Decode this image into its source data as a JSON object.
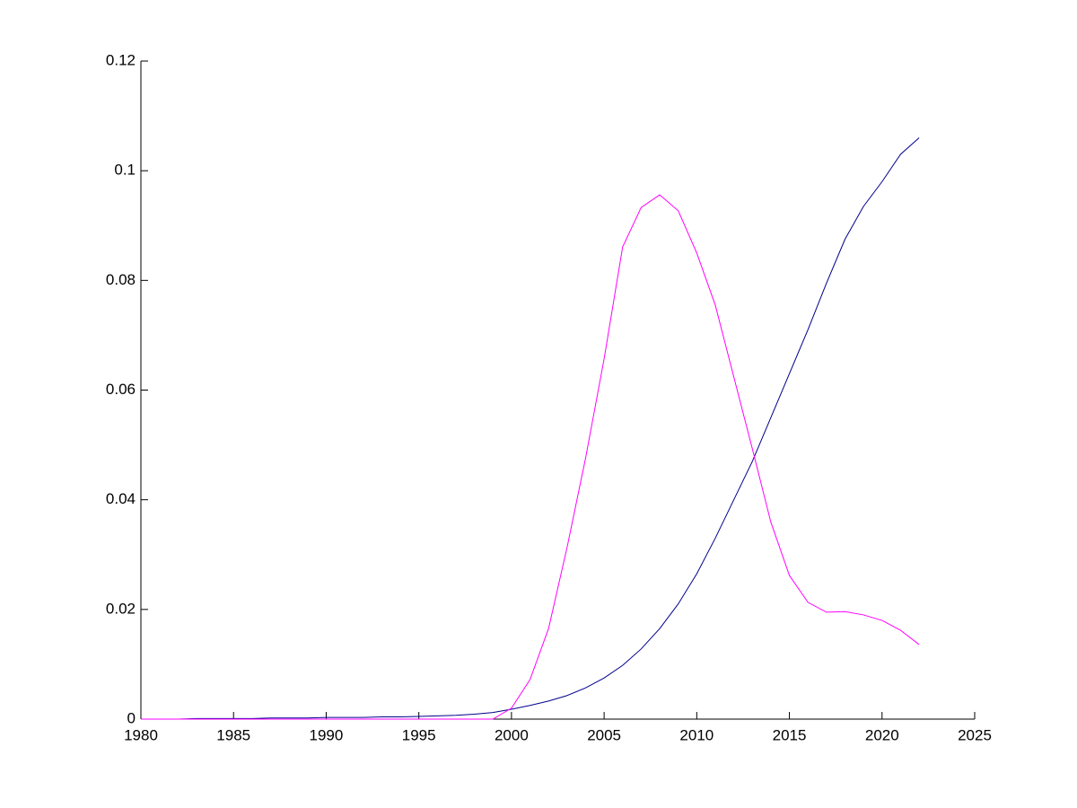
{
  "chart_data": {
    "type": "line",
    "x": [
      1980,
      1981,
      1982,
      1983,
      1984,
      1985,
      1986,
      1987,
      1988,
      1989,
      1990,
      1991,
      1992,
      1993,
      1994,
      1995,
      1996,
      1997,
      1998,
      1999,
      2000,
      2001,
      2002,
      2003,
      2004,
      2005,
      2006,
      2007,
      2008,
      2009,
      2010,
      2011,
      2012,
      2013,
      2014,
      2015,
      2016,
      2017,
      2018,
      2019,
      2020,
      2021,
      2022
    ],
    "series": [
      {
        "color": "#00008b",
        "values": [
          0,
          0,
          0,
          0.0001,
          0.0001,
          0.0001,
          0.0001,
          0.0002,
          0.0002,
          0.0002,
          0.0003,
          0.0003,
          0.0003,
          0.0004,
          0.0004,
          0.0005,
          0.0006,
          0.0007,
          0.0009,
          0.0012,
          0.0018,
          0.0025,
          0.0033,
          0.0043,
          0.0057,
          0.0075,
          0.0098,
          0.0128,
          0.0165,
          0.021,
          0.0265,
          0.033,
          0.04,
          0.047,
          0.055,
          0.063,
          0.071,
          0.0795,
          0.0875,
          0.0935,
          0.098,
          0.103,
          0.106
        ]
      },
      {
        "color": "#ff00ff",
        "values": [
          0,
          0,
          0,
          0,
          0,
          0,
          0,
          0,
          0,
          0,
          0,
          0,
          0,
          0,
          0,
          0,
          0,
          0,
          0,
          0,
          0.002,
          0.0072,
          0.0165,
          0.0313,
          0.0476,
          0.0657,
          0.0861,
          0.0933,
          0.0956,
          0.0927,
          0.085,
          0.0755,
          0.0624,
          0.0493,
          0.0359,
          0.0262,
          0.0213,
          0.0195,
          0.0196,
          0.019,
          0.018,
          0.0162,
          0.0136
        ]
      }
    ],
    "xlim": [
      1980,
      2025
    ],
    "xticks": [
      1980,
      1985,
      1990,
      1995,
      2000,
      2005,
      2010,
      2015,
      2020,
      2025
    ],
    "ylim": [
      0,
      0.12
    ],
    "yticks": [
      0,
      0.02,
      0.04,
      0.06,
      0.08,
      0.1,
      0.12
    ]
  }
}
